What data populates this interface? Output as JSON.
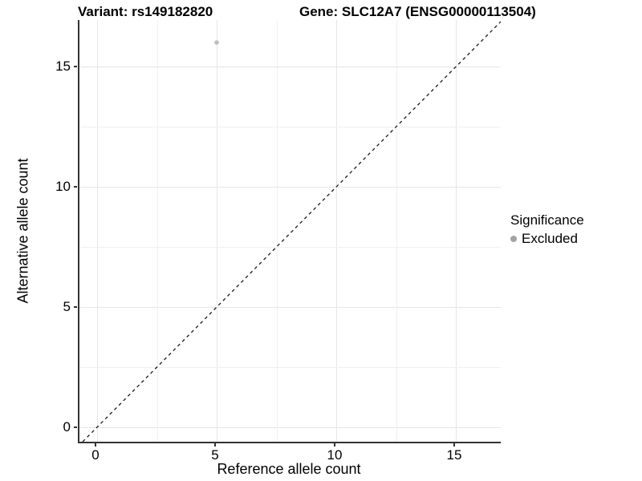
{
  "titles": {
    "variant": "Variant: rs149182820",
    "gene": "Gene: SLC12A7 (ENSG00000113504)"
  },
  "chart_data": {
    "type": "scatter",
    "title_left": "Variant: rs149182820",
    "title_right": "Gene: SLC12A7 (ENSG00000113504)",
    "xlabel": "Reference allele count",
    "ylabel": "Alternative allele count",
    "x_ticks": [
      0,
      5,
      10,
      15
    ],
    "y_ticks": [
      0,
      5,
      10,
      15
    ],
    "x_minor_ticks": [
      2.5,
      7.5,
      12.5
    ],
    "y_minor_ticks": [
      2.5,
      7.5,
      12.5
    ],
    "xlim": [
      -0.74,
      16.88
    ],
    "ylim": [
      -0.6,
      16.93
    ],
    "grid": "major+minor on white background",
    "series": [
      {
        "name": "Excluded",
        "color": "#bdbdbd",
        "points": [
          {
            "x": 5,
            "y": 16
          }
        ]
      }
    ],
    "reference_line": {
      "style": "dashed",
      "equation": "y = x",
      "color": "#1a1a1a"
    },
    "legend_position": "right"
  },
  "legend": {
    "title": "Significance",
    "entries": [
      {
        "label": "Excluded",
        "color": "#a3a3a3"
      }
    ]
  },
  "colors": {
    "background": "#ffffff",
    "axis_line": "#333333",
    "grid_major": "#e6e6e6",
    "grid_minor": "#f0f0f0",
    "point": "#bdbdbd",
    "legend_key": "#a3a3a3",
    "text": "#000000"
  }
}
